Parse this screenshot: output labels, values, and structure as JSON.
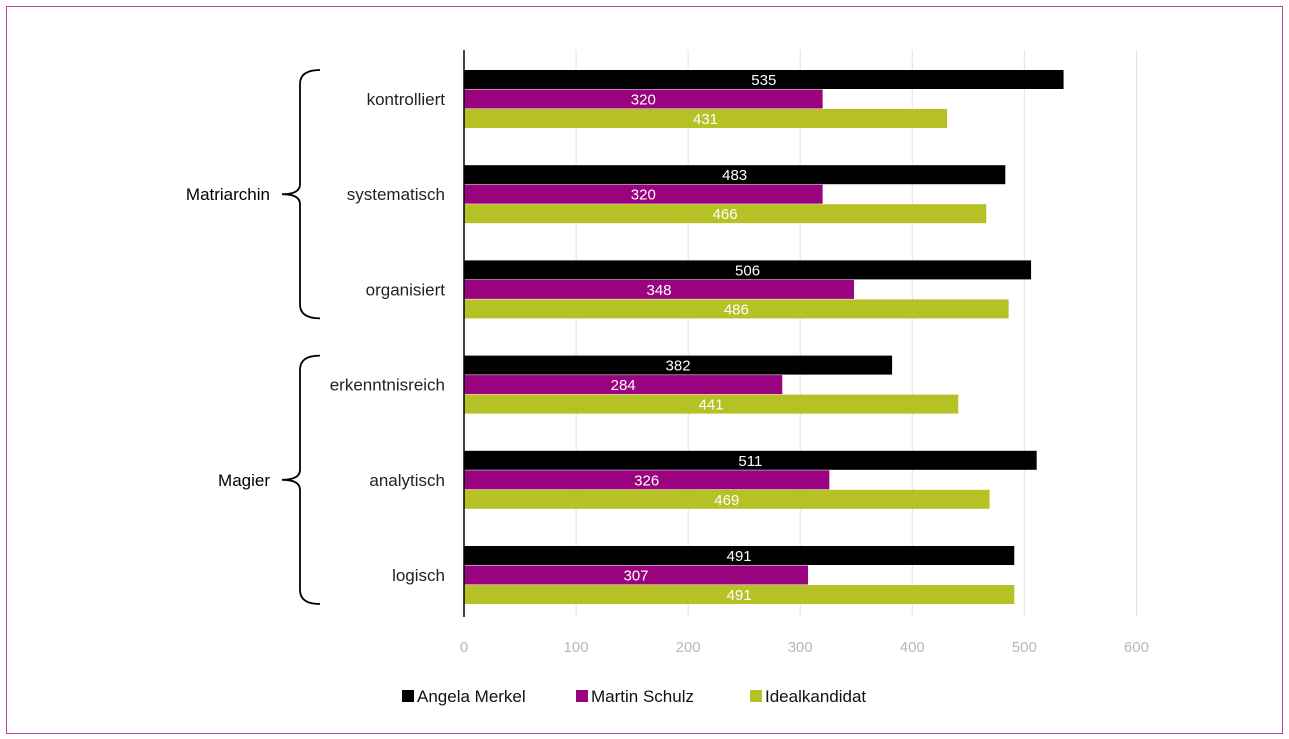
{
  "chart_data": {
    "type": "bar",
    "orientation": "horizontal",
    "categories": [
      "kontrolliert",
      "systematisch",
      "organisiert",
      "erkenntnisreich",
      "analytisch",
      "logisch"
    ],
    "groups": [
      {
        "label": "Matriarchin",
        "categories": [
          "kontrolliert",
          "systematisch",
          "organisiert"
        ]
      },
      {
        "label": "Magier",
        "categories": [
          "erkenntnisreich",
          "analytisch",
          "logisch"
        ]
      }
    ],
    "series": [
      {
        "name": "Angela Merkel",
        "color": "#000000",
        "values": [
          535,
          483,
          506,
          382,
          511,
          491
        ]
      },
      {
        "name": "Martin Schulz",
        "color": "#99037f",
        "values": [
          320,
          320,
          348,
          284,
          326,
          307
        ]
      },
      {
        "name": "Idealkandidat",
        "color": "#b5c125",
        "values": [
          431,
          466,
          486,
          441,
          469,
          491
        ]
      }
    ],
    "xlim": [
      0,
      600
    ],
    "xticks": [
      "0",
      "100",
      "200",
      "300",
      "400",
      "500",
      "600"
    ],
    "grid": true,
    "legend_position": "bottom",
    "data_labels": true,
    "frame_color": "#c0439a"
  }
}
